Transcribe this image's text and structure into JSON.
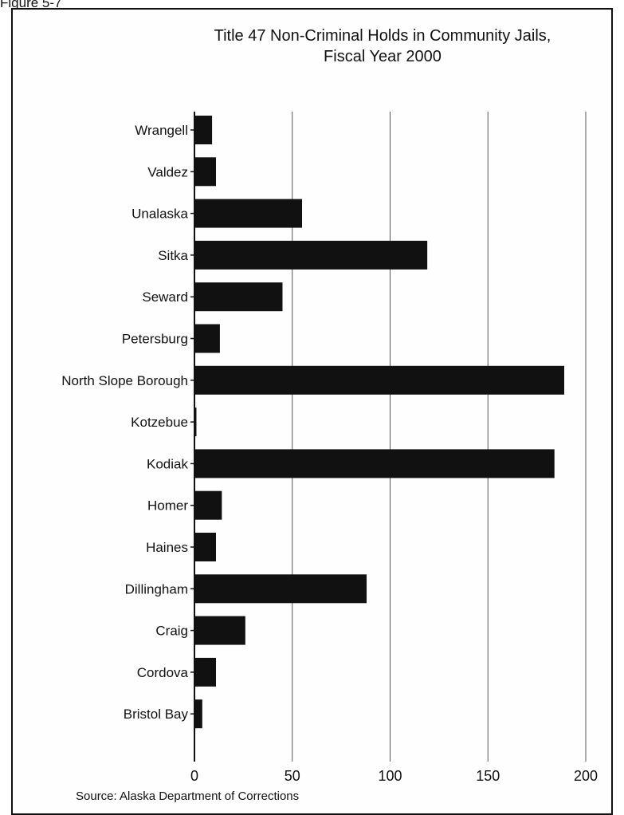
{
  "figure_label": "Figure 5-7",
  "source": "Source: Alaska Department of Corrections",
  "chart_data": {
    "type": "bar",
    "orientation": "horizontal",
    "title": "Title 47 Non-Criminal Holds in Community Jails,",
    "subtitle": "Fiscal Year 2000",
    "xlabel": "",
    "ylabel": "",
    "xlim": [
      0,
      200
    ],
    "xticks": [
      "0",
      "50",
      "100",
      "150",
      "200"
    ],
    "grid": "vertical",
    "categories": [
      "Wrangell",
      "Valdez",
      "Unalaska",
      "Sitka",
      "Seward",
      "Petersburg",
      "North Slope Borough",
      "Kotzebue",
      "Kodiak",
      "Homer",
      "Haines",
      "Dillingham",
      "Craig",
      "Cordova",
      "Bristol Bay"
    ],
    "values": [
      9,
      11,
      55,
      119,
      45,
      13,
      189,
      1,
      184,
      14,
      11,
      88,
      26,
      11,
      4
    ],
    "bar_color": "#111111"
  }
}
